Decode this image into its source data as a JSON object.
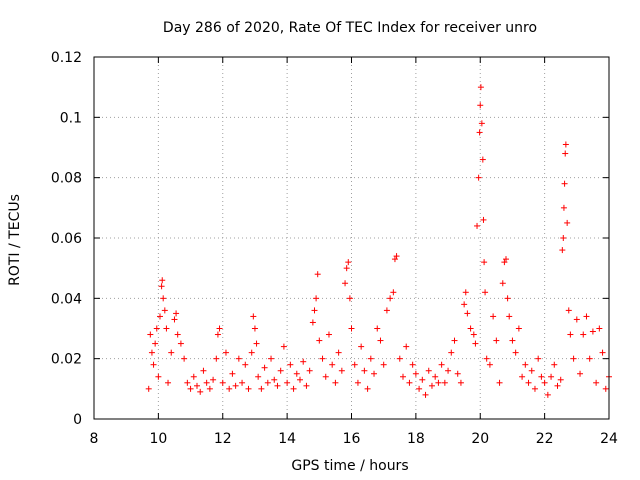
{
  "chart_data": {
    "type": "scatter",
    "title": "Day 286 of 2020, Rate Of TEC Index for receiver unro",
    "xlabel": "GPS time / hours",
    "ylabel": "ROTI / TECUs",
    "xlim": [
      8,
      24
    ],
    "ylim": [
      0,
      0.12
    ],
    "xticks": [
      8,
      10,
      12,
      14,
      16,
      18,
      20,
      22,
      24
    ],
    "xtick_labels": [
      "8",
      "10",
      "12",
      "14",
      "16",
      "18",
      "20",
      "22",
      "24"
    ],
    "yticks": [
      0,
      0.02,
      0.04,
      0.06,
      0.08,
      0.1,
      0.12
    ],
    "ytick_labels": [
      "0",
      "0.02",
      "0.04",
      "0.06",
      "0.08",
      "0.1",
      "0.12"
    ],
    "grid": true,
    "marker": "+",
    "color": "#ff0000",
    "series": [
      {
        "name": "ROTI",
        "points": [
          [
            9.7,
            0.01
          ],
          [
            9.75,
            0.028
          ],
          [
            9.8,
            0.022
          ],
          [
            9.85,
            0.018
          ],
          [
            9.9,
            0.025
          ],
          [
            9.95,
            0.03
          ],
          [
            10.0,
            0.014
          ],
          [
            10.05,
            0.034
          ],
          [
            10.1,
            0.044
          ],
          [
            10.12,
            0.046
          ],
          [
            10.15,
            0.04
          ],
          [
            10.2,
            0.036
          ],
          [
            10.25,
            0.03
          ],
          [
            10.3,
            0.012
          ],
          [
            10.4,
            0.022
          ],
          [
            10.5,
            0.033
          ],
          [
            10.55,
            0.035
          ],
          [
            10.6,
            0.028
          ],
          [
            10.7,
            0.025
          ],
          [
            10.8,
            0.02
          ],
          [
            10.9,
            0.012
          ],
          [
            11.0,
            0.01
          ],
          [
            11.1,
            0.014
          ],
          [
            11.2,
            0.011
          ],
          [
            11.3,
            0.009
          ],
          [
            11.4,
            0.016
          ],
          [
            11.5,
            0.012
          ],
          [
            11.6,
            0.01
          ],
          [
            11.7,
            0.013
          ],
          [
            11.8,
            0.02
          ],
          [
            11.85,
            0.028
          ],
          [
            11.9,
            0.03
          ],
          [
            12.0,
            0.012
          ],
          [
            12.1,
            0.022
          ],
          [
            12.2,
            0.01
          ],
          [
            12.3,
            0.015
          ],
          [
            12.4,
            0.011
          ],
          [
            12.5,
            0.02
          ],
          [
            12.6,
            0.012
          ],
          [
            12.7,
            0.018
          ],
          [
            12.8,
            0.01
          ],
          [
            12.9,
            0.022
          ],
          [
            12.95,
            0.034
          ],
          [
            13.0,
            0.03
          ],
          [
            13.05,
            0.025
          ],
          [
            13.1,
            0.014
          ],
          [
            13.2,
            0.01
          ],
          [
            13.3,
            0.017
          ],
          [
            13.4,
            0.012
          ],
          [
            13.5,
            0.02
          ],
          [
            13.6,
            0.013
          ],
          [
            13.7,
            0.011
          ],
          [
            13.8,
            0.016
          ],
          [
            13.9,
            0.024
          ],
          [
            14.0,
            0.012
          ],
          [
            14.1,
            0.018
          ],
          [
            14.2,
            0.01
          ],
          [
            14.3,
            0.015
          ],
          [
            14.4,
            0.013
          ],
          [
            14.5,
            0.019
          ],
          [
            14.6,
            0.011
          ],
          [
            14.7,
            0.016
          ],
          [
            14.8,
            0.032
          ],
          [
            14.85,
            0.036
          ],
          [
            14.9,
            0.04
          ],
          [
            14.95,
            0.048
          ],
          [
            15.0,
            0.026
          ],
          [
            15.1,
            0.02
          ],
          [
            15.2,
            0.014
          ],
          [
            15.3,
            0.028
          ],
          [
            15.4,
            0.018
          ],
          [
            15.5,
            0.012
          ],
          [
            15.6,
            0.022
          ],
          [
            15.7,
            0.016
          ],
          [
            15.8,
            0.045
          ],
          [
            15.85,
            0.05
          ],
          [
            15.9,
            0.052
          ],
          [
            15.95,
            0.04
          ],
          [
            16.0,
            0.03
          ],
          [
            16.1,
            0.018
          ],
          [
            16.2,
            0.012
          ],
          [
            16.3,
            0.024
          ],
          [
            16.4,
            0.016
          ],
          [
            16.5,
            0.01
          ],
          [
            16.6,
            0.02
          ],
          [
            16.7,
            0.015
          ],
          [
            16.8,
            0.03
          ],
          [
            16.9,
            0.026
          ],
          [
            17.0,
            0.018
          ],
          [
            17.1,
            0.036
          ],
          [
            17.2,
            0.04
          ],
          [
            17.3,
            0.042
          ],
          [
            17.35,
            0.053
          ],
          [
            17.4,
            0.054
          ],
          [
            17.5,
            0.02
          ],
          [
            17.6,
            0.014
          ],
          [
            17.7,
            0.024
          ],
          [
            17.8,
            0.012
          ],
          [
            17.9,
            0.018
          ],
          [
            18.0,
            0.015
          ],
          [
            18.1,
            0.01
          ],
          [
            18.2,
            0.013
          ],
          [
            18.3,
            0.008
          ],
          [
            18.4,
            0.016
          ],
          [
            18.5,
            0.011
          ],
          [
            18.6,
            0.014
          ],
          [
            18.7,
            0.012
          ],
          [
            18.8,
            0.018
          ],
          [
            18.9,
            0.012
          ],
          [
            19.0,
            0.016
          ],
          [
            19.1,
            0.022
          ],
          [
            19.2,
            0.026
          ],
          [
            19.3,
            0.015
          ],
          [
            19.4,
            0.012
          ],
          [
            19.5,
            0.038
          ],
          [
            19.55,
            0.042
          ],
          [
            19.6,
            0.035
          ],
          [
            19.7,
            0.03
          ],
          [
            19.8,
            0.028
          ],
          [
            19.85,
            0.025
          ],
          [
            19.9,
            0.064
          ],
          [
            19.95,
            0.08
          ],
          [
            19.98,
            0.095
          ],
          [
            20.0,
            0.104
          ],
          [
            20.02,
            0.11
          ],
          [
            20.05,
            0.098
          ],
          [
            20.08,
            0.086
          ],
          [
            20.1,
            0.066
          ],
          [
            20.12,
            0.052
          ],
          [
            20.15,
            0.042
          ],
          [
            20.2,
            0.02
          ],
          [
            20.3,
            0.018
          ],
          [
            20.4,
            0.034
          ],
          [
            20.5,
            0.026
          ],
          [
            20.6,
            0.012
          ],
          [
            20.7,
            0.045
          ],
          [
            20.75,
            0.052
          ],
          [
            20.8,
            0.053
          ],
          [
            20.85,
            0.04
          ],
          [
            20.9,
            0.034
          ],
          [
            21.0,
            0.026
          ],
          [
            21.1,
            0.022
          ],
          [
            21.2,
            0.03
          ],
          [
            21.3,
            0.014
          ],
          [
            21.4,
            0.018
          ],
          [
            21.5,
            0.012
          ],
          [
            21.6,
            0.016
          ],
          [
            21.7,
            0.01
          ],
          [
            21.8,
            0.02
          ],
          [
            21.9,
            0.014
          ],
          [
            22.0,
            0.012
          ],
          [
            22.1,
            0.008
          ],
          [
            22.2,
            0.014
          ],
          [
            22.3,
            0.018
          ],
          [
            22.4,
            0.011
          ],
          [
            22.5,
            0.013
          ],
          [
            22.55,
            0.056
          ],
          [
            22.58,
            0.06
          ],
          [
            22.6,
            0.07
          ],
          [
            22.62,
            0.078
          ],
          [
            22.64,
            0.088
          ],
          [
            22.66,
            0.091
          ],
          [
            22.7,
            0.065
          ],
          [
            22.75,
            0.036
          ],
          [
            22.8,
            0.028
          ],
          [
            22.9,
            0.02
          ],
          [
            23.0,
            0.033
          ],
          [
            23.1,
            0.015
          ],
          [
            23.2,
            0.028
          ],
          [
            23.3,
            0.034
          ],
          [
            23.4,
            0.02
          ],
          [
            23.5,
            0.029
          ],
          [
            23.6,
            0.012
          ],
          [
            23.7,
            0.03
          ],
          [
            23.8,
            0.022
          ],
          [
            23.9,
            0.01
          ],
          [
            24.0,
            0.014
          ]
        ]
      }
    ]
  }
}
